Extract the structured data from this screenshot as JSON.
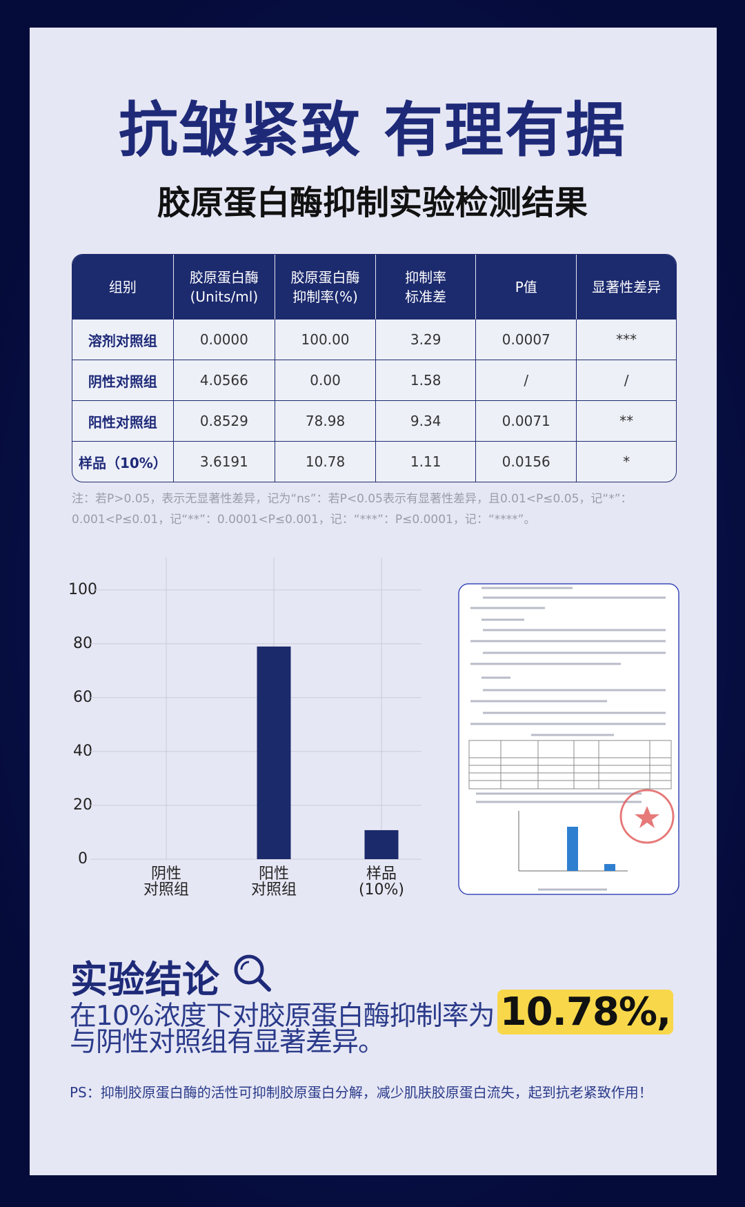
{
  "header": {
    "title": "抗皱紧致 有理有据",
    "subtitle": "胶原蛋白酶抑制实验检测结果"
  },
  "table": {
    "header": [
      "组别",
      "胶原蛋白酶\n(Units/ml)",
      "胶原蛋白酶\n抑制率(%)",
      "抑制率\n标准差",
      "P值",
      "显著性差异"
    ],
    "rows": [
      [
        "溶剂对照组",
        "0.0000",
        "100.00",
        "3.29",
        "0.0007",
        "***"
      ],
      [
        "阴性对照组",
        "4.0566",
        "0.00",
        "1.58",
        "/",
        "/"
      ],
      [
        "阳性对照组",
        "0.8529",
        "78.98",
        "9.34",
        "0.0071",
        "**"
      ],
      [
        "样品（10%）",
        "3.6191",
        "10.78",
        "1.11",
        "0.0156",
        "*"
      ]
    ]
  },
  "note": "注：若P>0.05，表示无显著性差异，记为“ns”：若P<0.05表示有显著性差异，且0.01<P≤0.05，记“*”：0.001<P≤0.01，记“**”：0.0001<P≤0.001，记：“***”：P≤0.0001，记：“****”。",
  "chart_data": {
    "type": "bar",
    "categories": [
      "阴性\n对照组",
      "阳性\n对照组",
      "样品\n(10%)"
    ],
    "values": [
      0,
      78.98,
      10.78
    ],
    "color": "#1b2a6b",
    "ylim": [
      0,
      112
    ],
    "yticks": [
      0,
      20,
      40,
      60,
      80,
      100
    ],
    "grid": true
  },
  "conclusion": {
    "heading": "实验结论",
    "text_before": "在10%浓度下对胶原蛋白酶抑制率为",
    "highlight": "10.78%,",
    "text_after": "与阴性对照组有显著差异。",
    "ps": "PS：抑制胶原蛋白酶的活性可抑制胶原蛋白分解，减少肌肤胶原蛋白流失，起到抗老紧致作用！"
  }
}
